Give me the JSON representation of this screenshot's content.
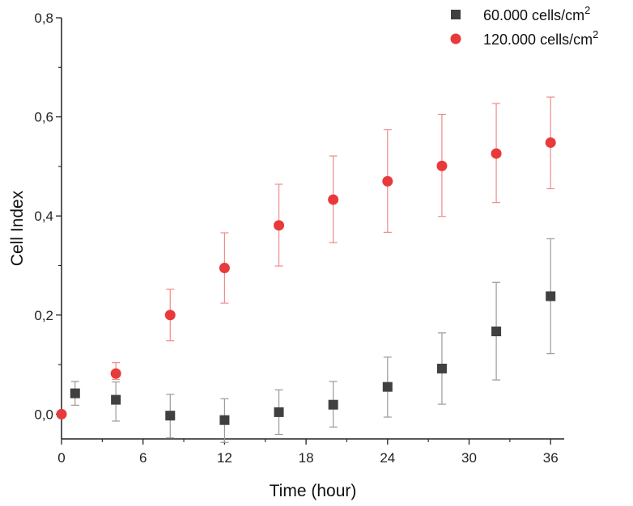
{
  "chart_data": {
    "type": "scatter",
    "xlabel": "Time (hour)",
    "ylabel": "Cell Index",
    "xlim": [
      0,
      37
    ],
    "ylim": [
      -0.05,
      0.8
    ],
    "xticks": [
      "0",
      "6",
      "12",
      "18",
      "24",
      "30",
      "36"
    ],
    "xtick_values": [
      0,
      6,
      12,
      18,
      24,
      30,
      36
    ],
    "yticks": [
      "0,0",
      "0,2",
      "0,4",
      "0,6",
      "0,8"
    ],
    "ytick_values": [
      0,
      0.2,
      0.4,
      0.6,
      0.8
    ],
    "grid": false,
    "legend_position": "top-right",
    "series": [
      {
        "name": "60.000 cells/cm",
        "name_sup": "2",
        "marker": "square",
        "color": "#404040",
        "error_color": "#9a9a9a",
        "x": [
          1,
          4,
          8,
          12,
          16,
          20,
          24,
          28,
          32,
          36
        ],
        "y": [
          0.042,
          0.029,
          -0.003,
          -0.012,
          0.004,
          0.019,
          0.055,
          0.092,
          0.167,
          0.238
        ],
        "err_low": [
          0.024,
          0.043,
          0.045,
          0.045,
          0.045,
          0.045,
          0.061,
          0.072,
          0.098,
          0.116
        ],
        "err_high": [
          0.024,
          0.036,
          0.043,
          0.043,
          0.045,
          0.047,
          0.06,
          0.072,
          0.099,
          0.116
        ]
      },
      {
        "name": "120.000 cells/cm",
        "name_sup": "2",
        "marker": "circle",
        "color": "#e83a3a",
        "error_color": "#f08a8a",
        "x": [
          0,
          4,
          8,
          12,
          16,
          20,
          24,
          28,
          32,
          36
        ],
        "y": [
          0.0,
          0.082,
          0.2,
          0.295,
          0.381,
          0.433,
          0.47,
          0.501,
          0.526,
          0.548
        ],
        "err_low": [
          0.0,
          0.012,
          0.052,
          0.071,
          0.082,
          0.087,
          0.103,
          0.102,
          0.099,
          0.093
        ],
        "err_high": [
          0.0,
          0.022,
          0.052,
          0.071,
          0.083,
          0.088,
          0.104,
          0.104,
          0.101,
          0.092
        ]
      }
    ]
  }
}
